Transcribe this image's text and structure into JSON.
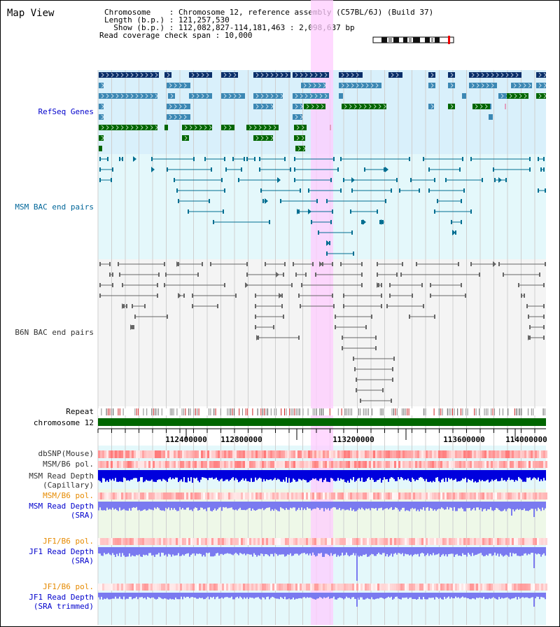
{
  "header": {
    "view_title": "Map View",
    "chromosome_line": "Chromosome    : Chromosome 12, reference assembly (C57BL/6J) (Build 37)",
    "length_line": "Length (b.p.) : 121,257,530",
    "show_line": "  Show (b.p.) : 112,082,827-114,181,463 : 2,098,637 bp",
    "span_line": "Read coverage check span : 10,000"
  },
  "tracks": {
    "refseq": {
      "label": "RefSeq Genes",
      "color": "#0000cc",
      "bg": "#d9f0fb"
    },
    "msm_bac": {
      "label": "MSM BAC end pairs",
      "color": "#006699",
      "bg": "#e4f8fb"
    },
    "b6n_bac": {
      "label": "B6N BAC end pairs",
      "color": "#333333",
      "bg": "#f4f4f4"
    },
    "repeat": {
      "label": "Repeat"
    },
    "chromosome": {
      "label": "chromosome 12",
      "color": "#006600"
    },
    "dbsnp": {
      "label": "dbSNP(Mouse)",
      "color": "#333333"
    },
    "msm_b6_pol": {
      "label": "MSM/B6 pol.",
      "color": "#333333"
    },
    "msm_depth_cap": {
      "label1": "MSM Read Depth",
      "label2": "(Capillary)",
      "color": "#333333"
    },
    "msm_b6_pol2": {
      "label": "MSM/B6 pol.",
      "color": "#e68a00"
    },
    "msm_depth_sra": {
      "label1": "MSM Read Depth",
      "label2": "(SRA)",
      "color": "#0000cc"
    },
    "jf1_b6_pol": {
      "label": "JF1/B6 pol.",
      "color": "#e68a00"
    },
    "jf1_depth_sra": {
      "label1": "JF1 Read Depth",
      "label2": "(SRA)",
      "color": "#0000cc"
    },
    "jf1_b6_pol2": {
      "label": "JF1/B6 pol.",
      "color": "#e68a00"
    },
    "jf1_depth_trim": {
      "label1": "JF1 Read Depth",
      "label2": "(SRA trimmed)",
      "color": "#0000cc"
    }
  },
  "ruler": {
    "ticks": [
      "112400000",
      "112800000",
      "113200000",
      "113600000",
      "114000000"
    ]
  },
  "colors": {
    "highlight": "#ffccff",
    "gene_dark": "#0a2f6a",
    "gene_mid": "#3c88b4",
    "gene_green": "#006600",
    "depth_dark": "#0000dd",
    "depth_light": "#7a7af0"
  }
}
